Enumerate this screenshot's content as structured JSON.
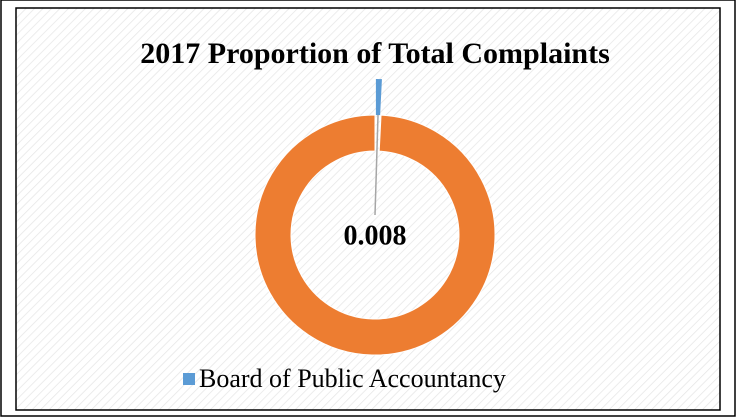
{
  "chart_data": {
    "type": "donut",
    "title": "2017 Proportion of Total Complaints",
    "categories": [
      "Board of Public Accountancy",
      null
    ],
    "values": [
      0.008,
      0.992
    ],
    "colors": [
      "#5b9bd5",
      "#ed7d31"
    ],
    "legend": "bottom"
  }
}
